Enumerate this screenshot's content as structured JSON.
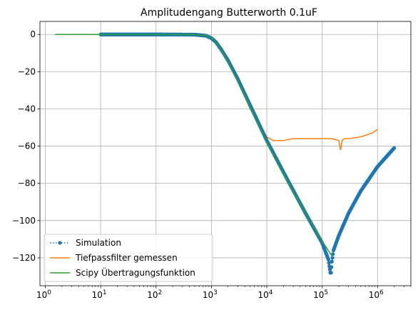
{
  "chart_data": {
    "type": "line",
    "title": "Amplitudengang Butterworth 0.1uF",
    "xlabel": "",
    "ylabel": "",
    "xscale": "log",
    "xlim": [
      0.8,
      4000000
    ],
    "ylim": [
      -135,
      7
    ],
    "x_ticks": [
      1,
      10,
      100,
      1000,
      10000,
      100000,
      1000000
    ],
    "x_tick_labels": [
      {
        "base": "10",
        "exp": "0"
      },
      {
        "base": "10",
        "exp": "1"
      },
      {
        "base": "10",
        "exp": "2"
      },
      {
        "base": "10",
        "exp": "3"
      },
      {
        "base": "10",
        "exp": "4"
      },
      {
        "base": "10",
        "exp": "5"
      },
      {
        "base": "10",
        "exp": "6"
      }
    ],
    "y_ticks": [
      0,
      -20,
      -40,
      -60,
      -80,
      -100,
      -120
    ],
    "y_tick_labels": [
      "0",
      "−20",
      "−40",
      "−60",
      "−80",
      "−100",
      "−120"
    ],
    "grid": true,
    "legend_position": "lower-left",
    "series": [
      {
        "name": "Simulation",
        "color": "#1f77b4",
        "style": "dotted-with-markers",
        "x": [
          10,
          100,
          500,
          800,
          1000,
          1200,
          1500,
          2000,
          3000,
          5000,
          10000,
          20000,
          50000,
          100000,
          130000,
          140000,
          145000,
          150000,
          160000,
          200000,
          300000,
          500000,
          1000000,
          2000000
        ],
        "y": [
          0,
          0,
          -0.1,
          -0.7,
          -2,
          -4,
          -8,
          -14,
          -24,
          -38,
          -57,
          -74,
          -96,
          -112,
          -121,
          -128,
          -128,
          -122,
          -116,
          -108,
          -96,
          -84,
          -71,
          -61
        ]
      },
      {
        "name": "Tiefpassfilter gemessen",
        "color": "#ff7f0e",
        "style": "solid",
        "x": [
          10,
          100,
          500,
          800,
          1000,
          1200,
          1500,
          2000,
          3000,
          5000,
          10000,
          13000,
          15000,
          20000,
          30000,
          50000,
          80000,
          100000,
          150000,
          200000,
          215000,
          230000,
          250000,
          300000,
          500000,
          800000,
          1000000
        ],
        "y": [
          0,
          0,
          0,
          -0.5,
          -2,
          -4,
          -8,
          -15,
          -25,
          -40,
          -55,
          -57,
          -57,
          -57,
          -56,
          -56,
          -56,
          -56,
          -56,
          -57,
          -62,
          -57,
          -56,
          -56,
          -55,
          -53,
          -51
        ]
      },
      {
        "name": "Scipy Übertragungsfunktion",
        "color": "#2ca02c",
        "style": "solid",
        "x": [
          1.5,
          10,
          100,
          500,
          800,
          1000,
          1200,
          1500,
          2000,
          3000,
          5000,
          10000,
          20000,
          50000,
          100000,
          150000
        ],
        "y": [
          0,
          0,
          0,
          -0.1,
          -0.7,
          -2,
          -4,
          -8,
          -15,
          -25,
          -39,
          -58,
          -75,
          -96,
          -111,
          -119
        ]
      }
    ]
  }
}
